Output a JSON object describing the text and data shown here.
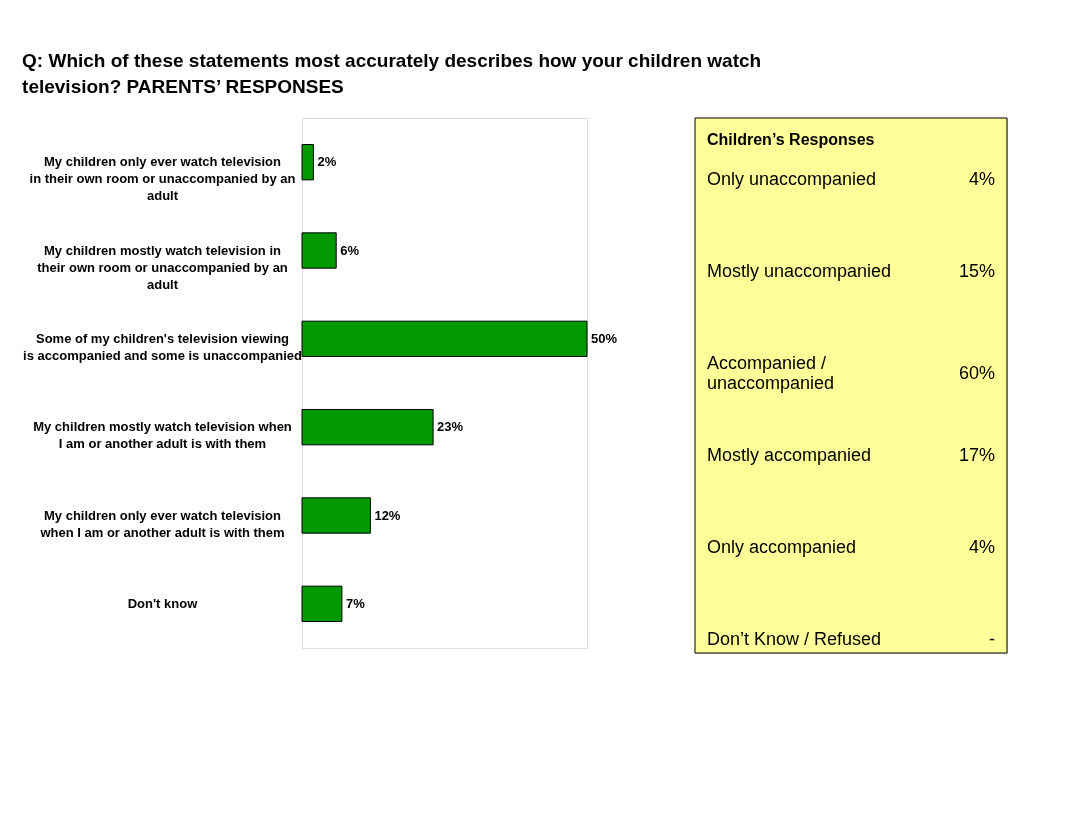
{
  "chart_data": [
    {
      "type": "bar",
      "orientation": "horizontal",
      "title": "Q: Which of these statements most accurately describes how your children watch television? PARENTS’ RESPONSES",
      "categories": [
        "My children only ever watch television in their own room or unaccompanied by an adult",
        "My children mostly watch television in their own room or unaccompanied by an adult",
        "Some of my children's television viewing is accompanied and some is unaccompanied",
        "My children mostly watch television when I am or another adult is with them",
        "My children only ever watch television when I am or another adult is with them",
        "Don't know"
      ],
      "series": [
        {
          "color": "#009900",
          "values": [
            2,
            6,
            50,
            23,
            12,
            7
          ],
          "value_labels": [
            "2%",
            "6%",
            "50%",
            "23%",
            "12%",
            "7%"
          ]
        }
      ],
      "data_labels": false
    },
    {
      "type": "other",
      "title": "Children’s Responses",
      "annotations": [
        "Only unaccompanied",
        "4%",
        "Mostly unaccompanied",
        "15%",
        "Accompanied / unaccompanied",
        "60%",
        "Mostly accompanied",
        "17%",
        "Only accompanied",
        "4%",
        "Don’t Know / Refused",
        "-"
      ]
    }
  ]
}
